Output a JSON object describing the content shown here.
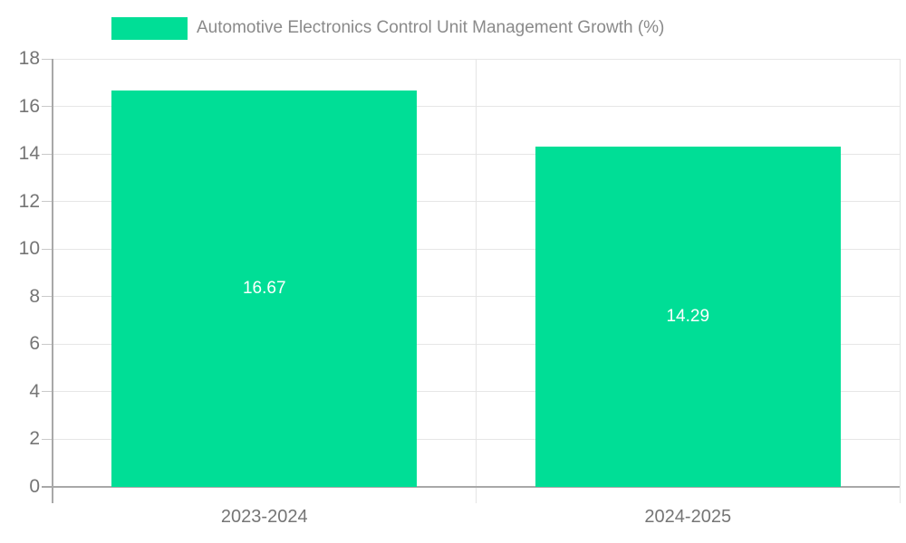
{
  "chart_data": {
    "type": "bar",
    "title": "Automotive Electronics Control Unit Management Growth (%)",
    "categories": [
      "2023-2024",
      "2024-2025"
    ],
    "values": [
      16.67,
      14.29
    ],
    "value_labels": [
      "16.67",
      "14.29"
    ],
    "xlabel": "",
    "ylabel": "",
    "ylim": [
      0,
      18
    ],
    "yticks": [
      0,
      2,
      4,
      6,
      8,
      10,
      12,
      14,
      16,
      18
    ],
    "grid": true,
    "legend_position": "top-left",
    "colors": {
      "bar": "#00DE96",
      "bar_value_text": "#ffffff",
      "grid": "#e6e6e6",
      "axis": "#a8a8a8",
      "tick_text": "#757575",
      "legend_text": "#8a8a8a",
      "background": "#ffffff"
    }
  },
  "legend": {
    "label": "Automotive Electronics Control Unit Management Growth (%)"
  }
}
